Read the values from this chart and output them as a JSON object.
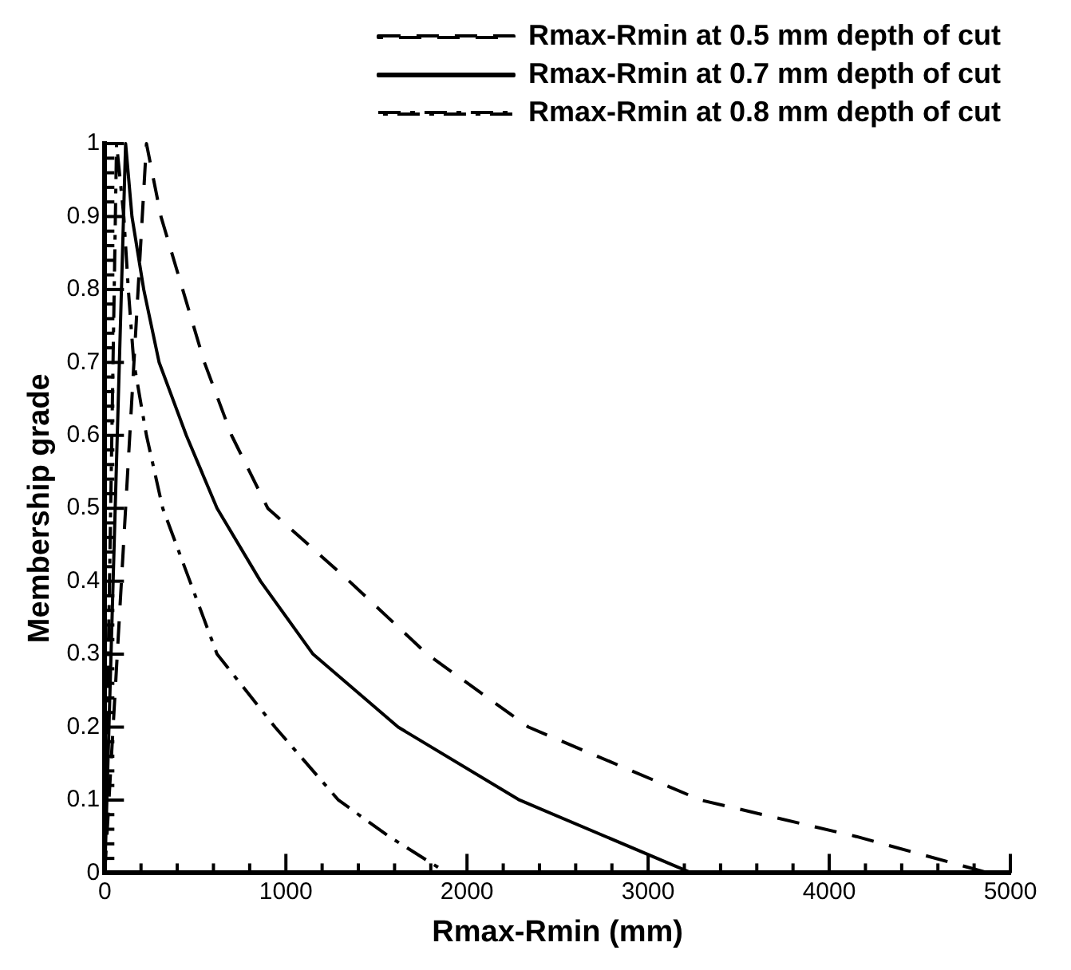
{
  "chart_data": {
    "type": "line",
    "xlabel": "Rmax-Rmin (mm)",
    "ylabel": "Membership grade",
    "xlim": [
      0,
      5000
    ],
    "ylim": [
      0,
      1
    ],
    "xticks": [
      0,
      {
        "value": 200,
        "label": null
      },
      {
        "value": 400,
        "label": null
      },
      {
        "value": 600,
        "label": null
      },
      {
        "value": 800,
        "label": null
      },
      1000,
      {
        "value": 1200,
        "label": null
      },
      {
        "value": 1400,
        "label": null
      },
      {
        "value": 1600,
        "label": null
      },
      {
        "value": 1800,
        "label": null
      },
      2000,
      {
        "value": 2200,
        "label": null
      },
      {
        "value": 2400,
        "label": null
      },
      {
        "value": 2600,
        "label": null
      },
      {
        "value": 2800,
        "label": null
      },
      3000,
      {
        "value": 3200,
        "label": null
      },
      {
        "value": 3400,
        "label": null
      },
      {
        "value": 3600,
        "label": null
      },
      {
        "value": 3800,
        "label": null
      },
      4000,
      {
        "value": 4200,
        "label": null
      },
      {
        "value": 4400,
        "label": null
      },
      {
        "value": 4600,
        "label": null
      },
      {
        "value": 4800,
        "label": null
      },
      5000
    ],
    "yticks": [
      0,
      {
        "value": 0.02,
        "label": null
      },
      {
        "value": 0.04,
        "label": null
      },
      {
        "value": 0.06,
        "label": null
      },
      {
        "value": 0.08,
        "label": null
      },
      0.1,
      {
        "value": 0.12,
        "label": null
      },
      {
        "value": 0.14,
        "label": null
      },
      {
        "value": 0.16,
        "label": null
      },
      {
        "value": 0.18,
        "label": null
      },
      0.2,
      {
        "value": 0.22,
        "label": null
      },
      {
        "value": 0.24,
        "label": null
      },
      {
        "value": 0.26,
        "label": null
      },
      {
        "value": 0.28,
        "label": null
      },
      0.3,
      {
        "value": 0.32,
        "label": null
      },
      {
        "value": 0.34,
        "label": null
      },
      {
        "value": 0.36,
        "label": null
      },
      {
        "value": 0.38,
        "label": null
      },
      0.4,
      {
        "value": 0.42,
        "label": null
      },
      {
        "value": 0.44,
        "label": null
      },
      {
        "value": 0.46,
        "label": null
      },
      {
        "value": 0.48,
        "label": null
      },
      0.5,
      {
        "value": 0.52,
        "label": null
      },
      {
        "value": 0.54,
        "label": null
      },
      {
        "value": 0.56,
        "label": null
      },
      {
        "value": 0.58,
        "label": null
      },
      0.6,
      {
        "value": 0.62,
        "label": null
      },
      {
        "value": 0.64,
        "label": null
      },
      {
        "value": 0.66,
        "label": null
      },
      {
        "value": 0.68,
        "label": null
      },
      0.7,
      {
        "value": 0.72,
        "label": null
      },
      {
        "value": 0.74,
        "label": null
      },
      {
        "value": 0.76,
        "label": null
      },
      {
        "value": 0.78,
        "label": null
      },
      0.8,
      {
        "value": 0.82,
        "label": null
      },
      {
        "value": 0.84,
        "label": null
      },
      {
        "value": 0.86,
        "label": null
      },
      {
        "value": 0.88,
        "label": null
      },
      0.9,
      {
        "value": 0.92,
        "label": null
      },
      {
        "value": 0.94,
        "label": null
      },
      {
        "value": 0.96,
        "label": null
      },
      {
        "value": 0.98,
        "label": null
      },
      1
    ],
    "grid": false,
    "legend": "top right",
    "marker": "none",
    "series": [
      {
        "name": "Rmax-Rmin at 0.5 mm depth of cut",
        "color": "#000000",
        "line_style": "dashed",
        "x": [
          0,
          230,
          310,
          430,
          550,
          700,
          900,
          1350,
          1780,
          2340,
          3290,
          4150,
          4880
        ],
        "values": [
          0,
          1,
          0.9,
          0.8,
          0.7,
          0.6,
          0.5,
          0.4,
          0.3,
          0.2,
          0.1,
          0.05,
          0
        ]
      },
      {
        "name": "Rmax-Rmin at 0.7 mm depth of cut",
        "color": "#000000",
        "line_style": "solid",
        "x": [
          0,
          115,
          150,
          215,
          300,
          450,
          620,
          860,
          1150,
          1620,
          2290,
          3240
        ],
        "values": [
          0,
          1,
          0.9,
          0.8,
          0.7,
          0.6,
          0.5,
          0.4,
          0.3,
          0.2,
          0.1,
          0
        ]
      },
      {
        "name": "Rmax-Rmin at 0.8 mm depth of cut",
        "color": "#000000",
        "line_style": "dashdot",
        "x": [
          0,
          65,
          105,
          130,
          160,
          230,
          320,
          470,
          620,
          940,
          1290,
          1570,
          1890
        ],
        "values": [
          0,
          1,
          0.9,
          0.8,
          0.7,
          0.6,
          0.5,
          0.4,
          0.3,
          0.2,
          0.1,
          0.05,
          0
        ]
      }
    ]
  }
}
